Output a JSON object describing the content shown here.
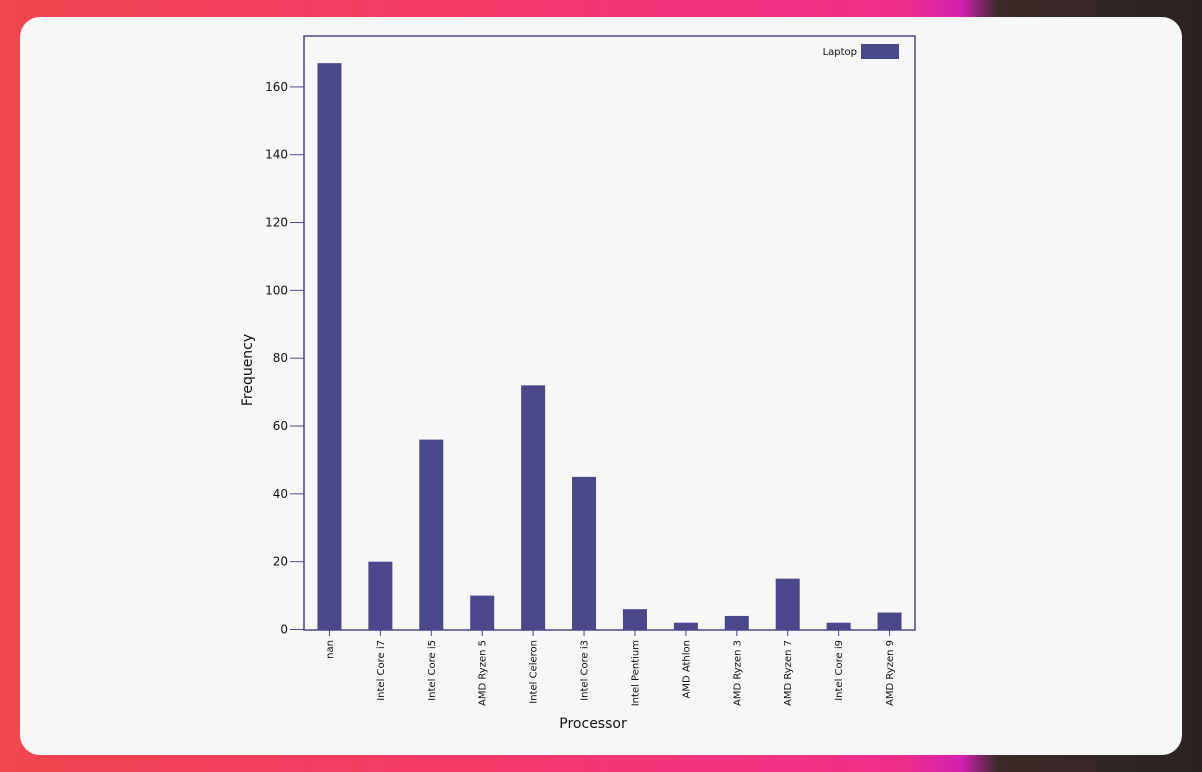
{
  "chart_data": {
    "type": "bar",
    "categories": [
      "nan",
      "Intel Core i7",
      "Intel Core i5",
      "AMD Ryzen 5",
      "Intel Celeron",
      "Intel Core i3",
      "Intel Pentium",
      "AMD Athlon",
      "AMD Ryzen 3",
      "AMD Ryzen 7",
      "Intel Core i9",
      "AMD Ryzen 9"
    ],
    "series": [
      {
        "name": "Laptop",
        "values": [
          167,
          20,
          56,
          10,
          72,
          45,
          6,
          2,
          4,
          15,
          2,
          5
        ]
      }
    ],
    "xlabel": "Processor",
    "ylabel": "Frequency",
    "ylim": [
      0,
      175
    ],
    "yticks": [
      0,
      20,
      40,
      60,
      80,
      100,
      120,
      140,
      160
    ],
    "grid": false,
    "legend": "top-right",
    "colors": {
      "bar": "#4a478a",
      "axis": "#4a478a"
    }
  }
}
